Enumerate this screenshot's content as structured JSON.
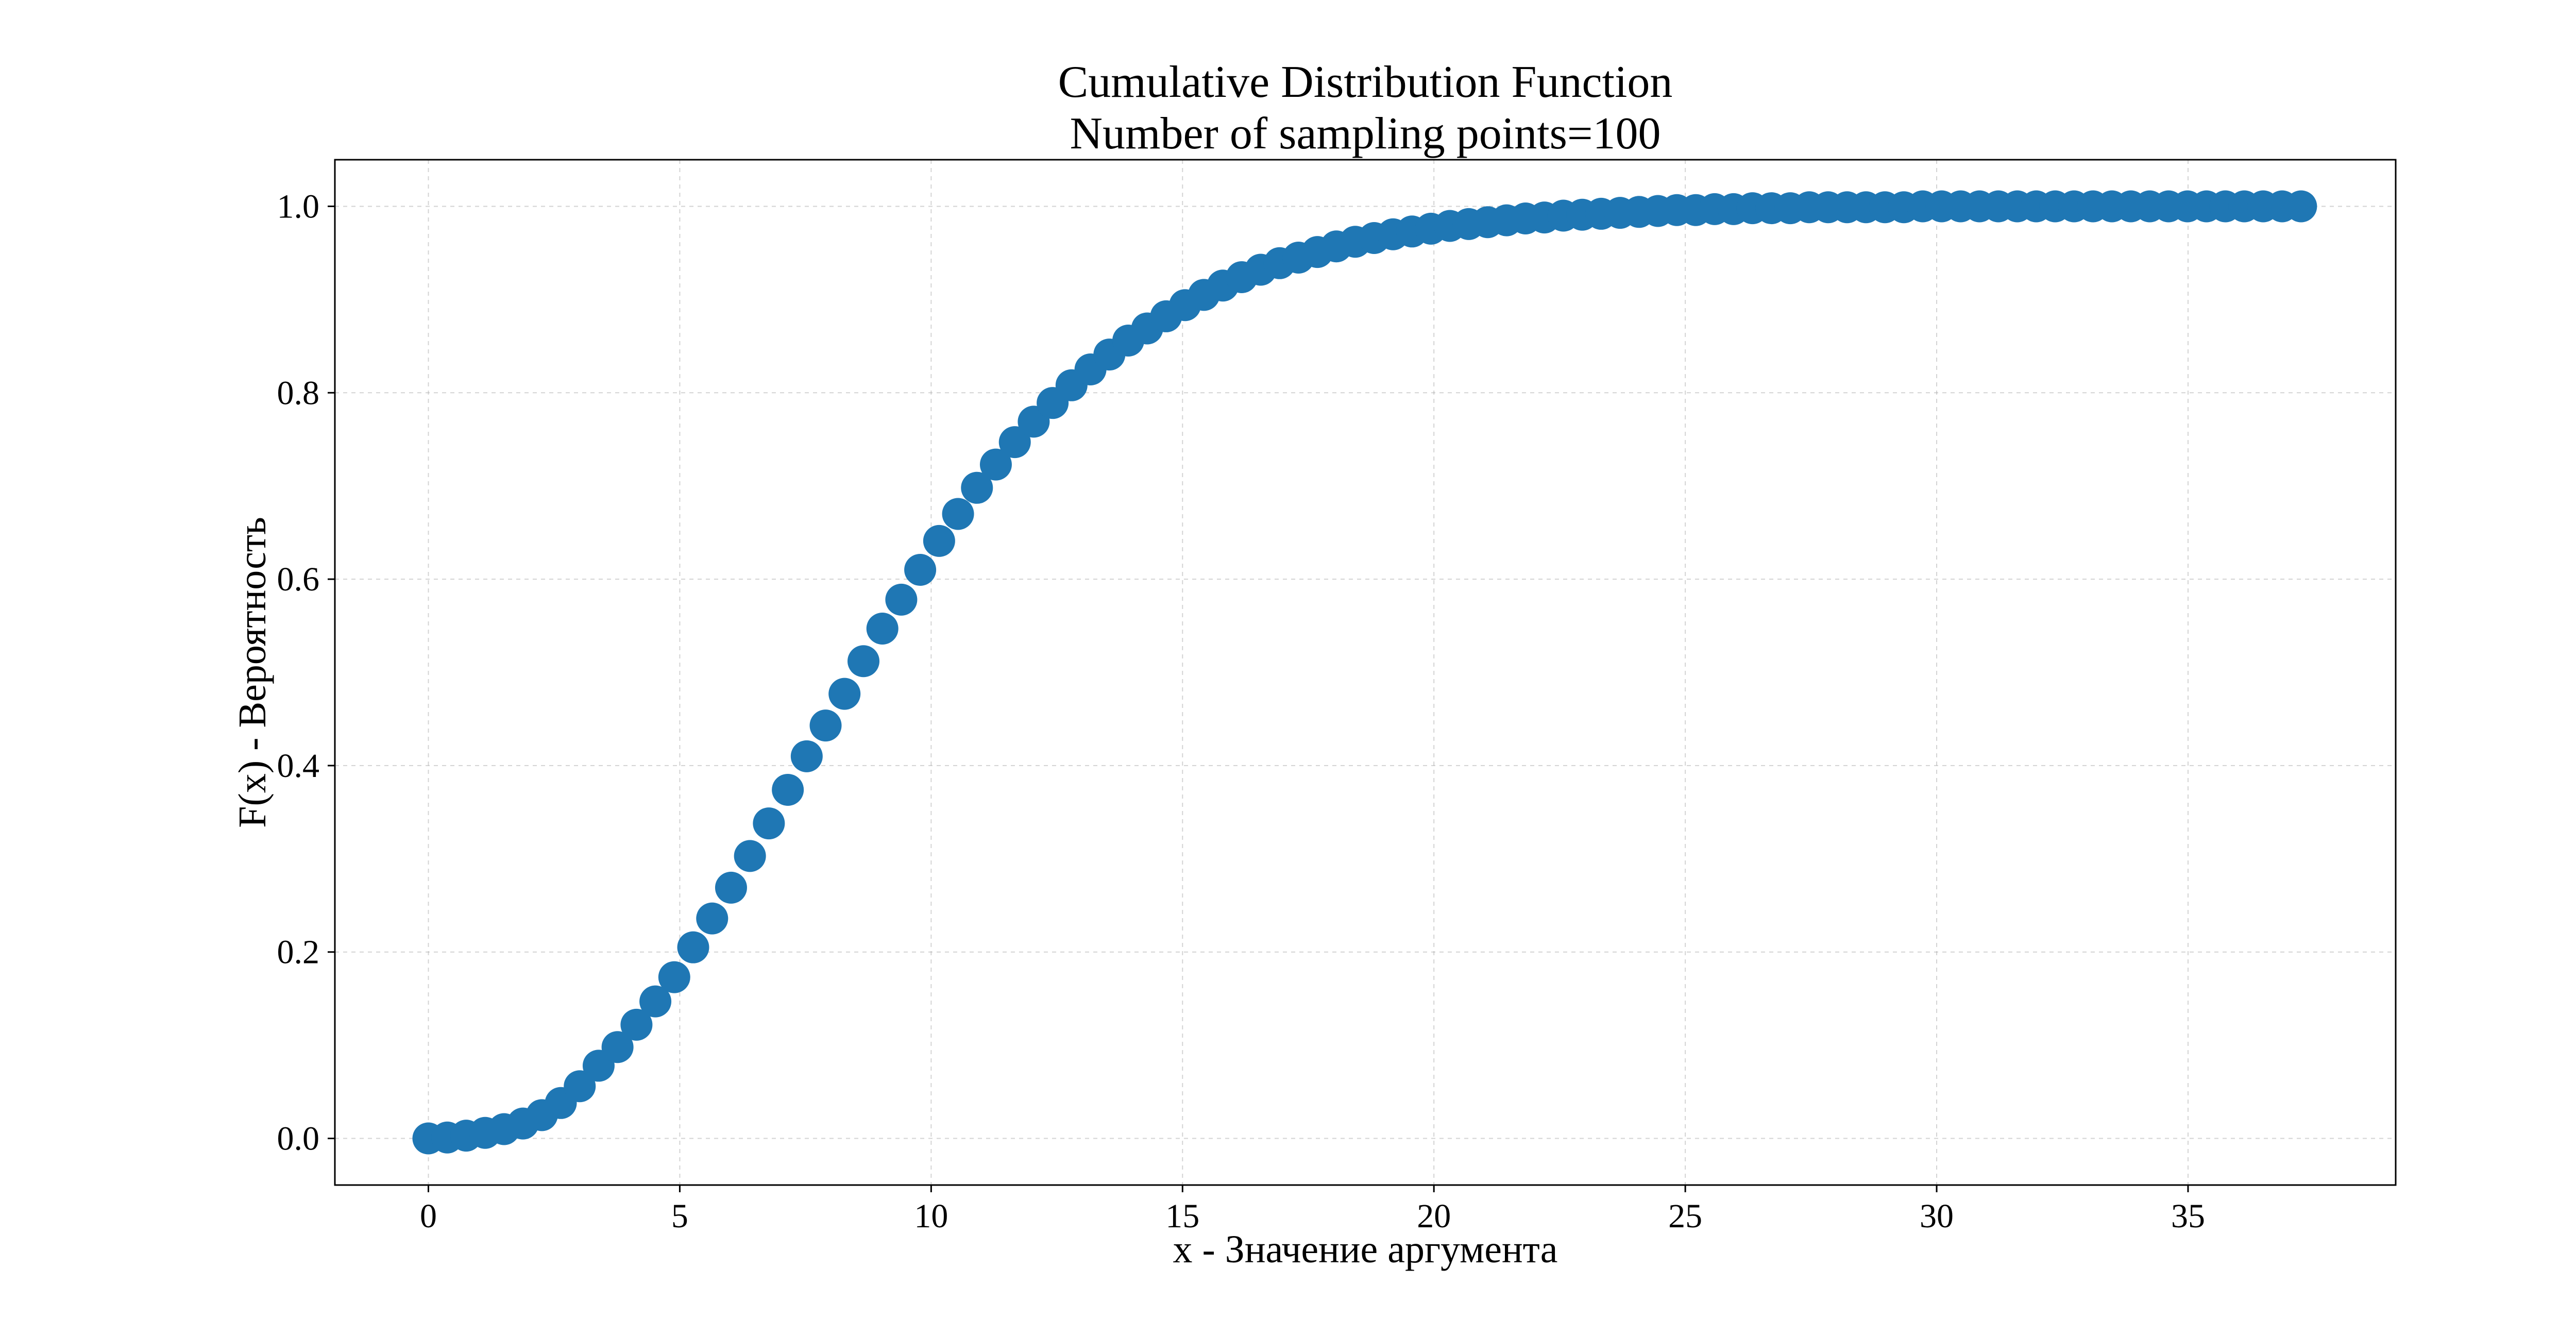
{
  "chart_data": {
    "type": "scatter",
    "title": "Cumulative Distribution Function",
    "subtitle": "Number of sampling points=100",
    "xlabel": "x - Значение аргумента",
    "ylabel": "F(x) - Вероятность",
    "xlim": [
      -1.86,
      39.13
    ],
    "ylim": [
      -0.05,
      1.05
    ],
    "x_ticks": [
      "0",
      "5",
      "10",
      "15",
      "20",
      "25",
      "30",
      "35"
    ],
    "x_tick_values": [
      0,
      5,
      10,
      15,
      20,
      25,
      30,
      35
    ],
    "y_ticks": [
      "0.0",
      "0.2",
      "0.4",
      "0.6",
      "0.8",
      "1.0"
    ],
    "y_tick_values": [
      0.0,
      0.2,
      0.4,
      0.6,
      0.8,
      1.0
    ],
    "grid": true,
    "marker_color": "#1f77b4",
    "series": [
      {
        "x": [
          0.0,
          0.376,
          0.752,
          1.129,
          1.505,
          1.881,
          2.257,
          2.634,
          3.01,
          3.386,
          3.762,
          4.139,
          4.515,
          4.891,
          5.267,
          5.644,
          6.02,
          6.396,
          6.772,
          7.149,
          7.525,
          7.901,
          8.277,
          8.654,
          9.03,
          9.406,
          9.782,
          10.159,
          10.535,
          10.911,
          11.287,
          11.664,
          12.04,
          12.416,
          12.792,
          13.169,
          13.545,
          13.921,
          14.297,
          14.674,
          15.05,
          15.426,
          15.802,
          16.178,
          16.555,
          16.931,
          17.307,
          17.683,
          18.06,
          18.436,
          18.812,
          19.188,
          19.565,
          19.941,
          20.317,
          20.693,
          21.07,
          21.446,
          21.822,
          22.198,
          22.575,
          22.951,
          23.327,
          23.703,
          24.08,
          24.456,
          24.832,
          25.208,
          25.584,
          25.961,
          26.337,
          26.713,
          27.089,
          27.466,
          27.842,
          28.218,
          28.594,
          28.971,
          29.347,
          29.723,
          30.099,
          30.476,
          30.852,
          31.228,
          31.604,
          31.981,
          32.357,
          32.733,
          33.109,
          33.486,
          33.862,
          34.238,
          34.614,
          34.99,
          35.367,
          35.743,
          36.119,
          36.495,
          36.872,
          37.248
        ],
        "y": [
          0.0,
          0.001,
          0.003,
          0.006,
          0.01,
          0.016,
          0.025,
          0.038,
          0.056,
          0.078,
          0.098,
          0.122,
          0.147,
          0.173,
          0.205,
          0.236,
          0.269,
          0.303,
          0.338,
          0.374,
          0.41,
          0.443,
          0.477,
          0.512,
          0.547,
          0.578,
          0.61,
          0.641,
          0.67,
          0.698,
          0.723,
          0.747,
          0.769,
          0.789,
          0.808,
          0.825,
          0.841,
          0.856,
          0.869,
          0.882,
          0.894,
          0.905,
          0.915,
          0.924,
          0.932,
          0.939,
          0.945,
          0.951,
          0.957,
          0.962,
          0.966,
          0.97,
          0.973,
          0.976,
          0.979,
          0.981,
          0.983,
          0.985,
          0.987,
          0.988,
          0.99,
          0.991,
          0.992,
          0.993,
          0.994,
          0.995,
          0.996,
          0.996,
          0.997,
          0.997,
          0.998,
          0.998,
          0.998,
          0.999,
          0.999,
          0.999,
          0.999,
          0.999,
          0.999,
          1.0,
          1.0,
          1.0,
          1.0,
          1.0,
          1.0,
          1.0,
          1.0,
          1.0,
          1.0,
          1.0,
          1.0,
          1.0,
          1.0,
          1.0,
          1.0,
          1.0,
          1.0,
          1.0,
          1.0,
          1.0
        ]
      }
    ]
  }
}
